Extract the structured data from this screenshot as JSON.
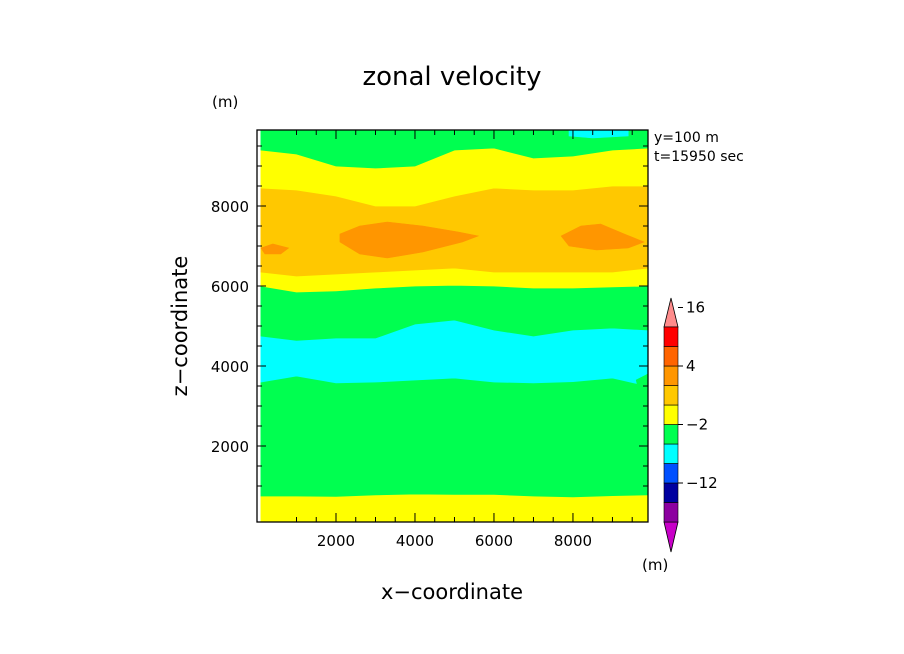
{
  "chart_data": {
    "type": "heatmap",
    "title": "zonal velocity",
    "xlabel": "x−coordinate",
    "ylabel": "z−coordinate",
    "y_unit": "(m)",
    "colorbar_unit": "(m)",
    "annotations": [
      "y=100  m",
      "t=15950  sec"
    ],
    "xlim": [
      0,
      9900
    ],
    "ylim": [
      100,
      9900
    ],
    "x_ticks": [
      2000,
      4000,
      6000,
      8000
    ],
    "y_ticks": [
      2000,
      4000,
      6000,
      8000
    ],
    "x_tick_labels": [
      "2000",
      "4000",
      "6000",
      "8000"
    ],
    "y_tick_labels": [
      "2000",
      "4000",
      "6000",
      "8000"
    ],
    "colorbar": {
      "colors": [
        "#c800c8",
        "#8c00a0",
        "#0000a0",
        "#0050ff",
        "#00ffff",
        "#00ff50",
        "#ffff00",
        "#ffc800",
        "#ff9600",
        "#ff6400",
        "#ff0000",
        "#ff8c8c"
      ],
      "ticks": [
        {
          "label": "16",
          "boundary": 11
        },
        {
          "label": "4",
          "boundary": 8
        },
        {
          "label": "−2",
          "boundary": 5
        },
        {
          "label": "−12",
          "boundary": 2
        }
      ]
    },
    "bands": [
      {
        "color": "#ffff00",
        "bottom": [
          100,
          100,
          100,
          100,
          100,
          100,
          100,
          100,
          100,
          100,
          100
        ],
        "top": [
          750,
          750,
          740,
          780,
          800,
          790,
          790,
          750,
          730,
          760,
          780
        ]
      },
      {
        "color": "#00ff50",
        "bottom": [
          750,
          750,
          740,
          780,
          800,
          790,
          790,
          750,
          730,
          760,
          780
        ],
        "top": [
          3600,
          3750,
          3580,
          3600,
          3650,
          3700,
          3600,
          3580,
          3610,
          3700,
          3500
        ]
      },
      {
        "color": "#00ffff",
        "bottom": [
          3600,
          3750,
          3580,
          3600,
          3650,
          3700,
          3600,
          3580,
          3610,
          3700,
          3500
        ],
        "top": [
          4750,
          4640,
          4700,
          4700,
          5050,
          5150,
          4900,
          4750,
          4900,
          4950,
          4900
        ]
      },
      {
        "color": "#00ff50",
        "bottom": [
          4750,
          4640,
          4700,
          4700,
          5050,
          5150,
          4900,
          4750,
          4900,
          4950,
          4900
        ],
        "top": [
          6000,
          5850,
          5880,
          5950,
          6000,
          6020,
          6000,
          5950,
          5950,
          5980,
          6000
        ]
      },
      {
        "color": "#ffff00",
        "bottom": [
          6000,
          5850,
          5880,
          5950,
          6000,
          6020,
          6000,
          5950,
          5950,
          5980,
          6000
        ],
        "top": [
          6350,
          6250,
          6300,
          6350,
          6400,
          6450,
          6350,
          6350,
          6350,
          6350,
          6450
        ]
      },
      {
        "color": "#ffc800",
        "bottom": [
          6350,
          6250,
          6300,
          6350,
          6400,
          6450,
          6350,
          6350,
          6350,
          6350,
          6450
        ],
        "top": [
          8450,
          8400,
          8250,
          8000,
          8000,
          8250,
          8450,
          8400,
          8400,
          8500,
          8500
        ]
      },
      {
        "color": "#ffff00",
        "bottom": [
          8450,
          8400,
          8250,
          8000,
          8000,
          8250,
          8450,
          8400,
          8400,
          8500,
          8500
        ],
        "top": [
          9400,
          9300,
          9000,
          8950,
          9000,
          9400,
          9450,
          9200,
          9250,
          9400,
          9450
        ]
      },
      {
        "color": "#00ff50",
        "bottom": [
          9400,
          9300,
          9000,
          8950,
          9000,
          9400,
          9450,
          9200,
          9250,
          9400,
          9450
        ],
        "top": [
          9900,
          9900,
          9900,
          9900,
          9900,
          9900,
          9900,
          9900,
          9900,
          9900,
          9900
        ]
      }
    ],
    "band_x": [
      100,
      1000,
      2000,
      3000,
      4000,
      5000,
      6000,
      7000,
      8000,
      9000,
      9900
    ],
    "patches": [
      {
        "color": "#ff9600",
        "points": [
          [
            2100,
            7300
          ],
          [
            2600,
            7500
          ],
          [
            3300,
            7600
          ],
          [
            4200,
            7500
          ],
          [
            5100,
            7350
          ],
          [
            5600,
            7250
          ],
          [
            5200,
            7100
          ],
          [
            4200,
            6850
          ],
          [
            3300,
            6700
          ],
          [
            2600,
            6800
          ],
          [
            2100,
            7100
          ]
        ]
      },
      {
        "color": "#ff9600",
        "points": [
          [
            7700,
            7250
          ],
          [
            8200,
            7500
          ],
          [
            8700,
            7550
          ],
          [
            9300,
            7300
          ],
          [
            9800,
            7100
          ],
          [
            9400,
            6950
          ],
          [
            8600,
            6900
          ],
          [
            7900,
            7000
          ]
        ]
      },
      {
        "color": "#ff9600",
        "points": [
          [
            100,
            6950
          ],
          [
            400,
            7050
          ],
          [
            800,
            6950
          ],
          [
            600,
            6800
          ],
          [
            200,
            6800
          ]
        ]
      },
      {
        "color": "#00ffff",
        "points": [
          [
            7900,
            9900
          ],
          [
            9400,
            9900
          ],
          [
            9400,
            9750
          ],
          [
            8500,
            9700
          ],
          [
            7900,
            9750
          ]
        ]
      },
      {
        "color": "#00ff50",
        "points": [
          [
            1000,
            5000
          ],
          [
            1300,
            5100
          ],
          [
            1500,
            5050
          ],
          [
            1300,
            4950
          ]
        ]
      },
      {
        "color": "#00ff50",
        "points": [
          [
            9600,
            3650
          ],
          [
            9900,
            3800
          ],
          [
            9900,
            3400
          ],
          [
            9650,
            3450
          ]
        ]
      }
    ]
  }
}
